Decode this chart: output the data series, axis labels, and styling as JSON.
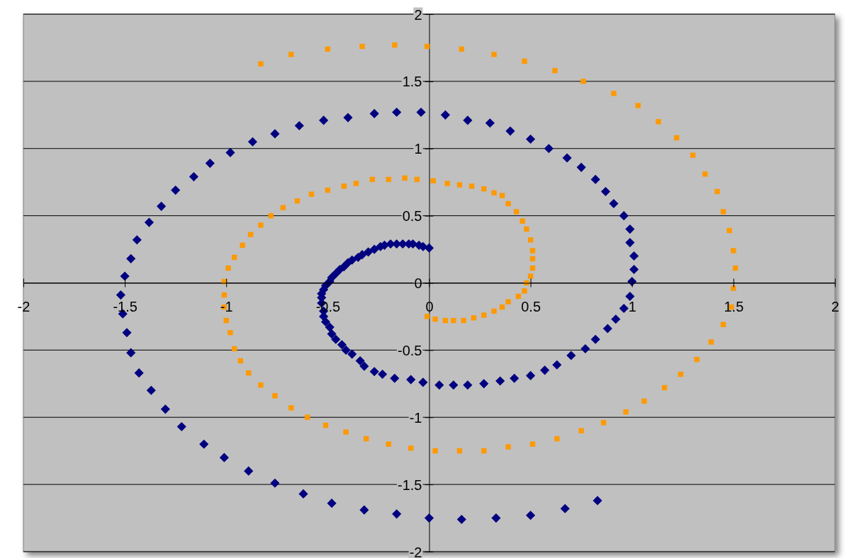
{
  "chart_data": {
    "type": "scatter",
    "xlim": [
      -2,
      2
    ],
    "ylim": [
      -2,
      2
    ],
    "xticks": [
      -2,
      -1.5,
      -1,
      -0.5,
      0,
      0.5,
      1,
      1.5,
      2
    ],
    "yticks": [
      -2,
      -1.5,
      -1,
      -0.5,
      0,
      0.5,
      1,
      1.5,
      2
    ],
    "grid": "y",
    "legend": false,
    "series": [
      {
        "color": "#000080",
        "marker": "diamond",
        "x": [
          0.0,
          -0.03,
          -0.05,
          -0.08,
          -0.1,
          -0.13,
          -0.16,
          -0.19,
          -0.22,
          -0.24,
          -0.27,
          -0.3,
          -0.33,
          -0.35,
          -0.38,
          -0.4,
          -0.42,
          -0.44,
          -0.46,
          -0.48,
          -0.49,
          -0.51,
          -0.52,
          -0.53,
          -0.53,
          -0.53,
          -0.52,
          -0.52,
          -0.51,
          -0.49,
          -0.48,
          -0.46,
          -0.43,
          -0.41,
          -0.38,
          -0.34,
          -0.32,
          -0.27,
          -0.23,
          -0.17,
          -0.09,
          -0.03,
          0.05,
          0.12,
          0.19,
          0.27,
          0.35,
          0.42,
          0.5,
          0.57,
          0.63,
          0.7,
          0.77,
          0.82,
          0.88,
          0.92,
          0.96,
          0.99,
          1.0,
          1.01,
          1.01,
          0.99,
          0.99,
          0.96,
          0.91,
          0.87,
          0.82,
          0.75,
          0.68,
          0.59,
          0.5,
          0.4,
          0.3,
          0.19,
          0.08,
          -0.04,
          -0.16,
          -0.27,
          -0.4,
          -0.52,
          -0.64,
          -0.76,
          -0.87,
          -0.98,
          -1.08,
          -1.16,
          -1.25,
          -1.32,
          -1.38,
          -1.44,
          -1.47,
          -1.5,
          -1.52,
          -1.51,
          -1.49,
          -1.47,
          -1.43,
          -1.37,
          -1.3,
          -1.22,
          -1.11,
          -1.01,
          -0.89,
          -0.76,
          -0.62,
          -0.48,
          -0.32,
          -0.16,
          0.0,
          0.16,
          0.33,
          0.5,
          0.67,
          0.83
        ],
        "values": [
          0.26,
          0.27,
          0.28,
          0.29,
          0.29,
          0.29,
          0.29,
          0.29,
          0.28,
          0.27,
          0.25,
          0.23,
          0.21,
          0.19,
          0.17,
          0.15,
          0.12,
          0.1,
          0.07,
          0.04,
          0.01,
          -0.02,
          -0.05,
          -0.08,
          -0.11,
          -0.15,
          -0.21,
          -0.25,
          -0.29,
          -0.33,
          -0.38,
          -0.42,
          -0.46,
          -0.5,
          -0.53,
          -0.58,
          -0.62,
          -0.66,
          -0.68,
          -0.71,
          -0.72,
          -0.74,
          -0.76,
          -0.76,
          -0.76,
          -0.75,
          -0.73,
          -0.71,
          -0.69,
          -0.65,
          -0.61,
          -0.54,
          -0.49,
          -0.42,
          -0.34,
          -0.27,
          -0.19,
          -0.1,
          0.01,
          0.1,
          0.2,
          0.3,
          0.4,
          0.5,
          0.59,
          0.68,
          0.77,
          0.86,
          0.93,
          1.0,
          1.07,
          1.13,
          1.19,
          1.21,
          1.25,
          1.27,
          1.27,
          1.26,
          1.23,
          1.21,
          1.17,
          1.11,
          1.05,
          0.97,
          0.89,
          0.79,
          0.69,
          0.57,
          0.45,
          0.32,
          0.18,
          0.05,
          -0.09,
          -0.23,
          -0.37,
          -0.52,
          -0.67,
          -0.8,
          -0.94,
          -1.07,
          -1.2,
          -1.3,
          -1.4,
          -1.49,
          -1.57,
          -1.64,
          -1.69,
          -1.72,
          -1.75,
          -1.76,
          -1.75,
          -1.73,
          -1.68,
          -1.62
        ]
      },
      {
        "color": "#ff9900",
        "marker": "square",
        "x": [
          -0.01,
          0.03,
          0.08,
          0.12,
          0.17,
          0.22,
          0.27,
          0.32,
          0.36,
          0.39,
          0.44,
          0.47,
          0.48,
          0.5,
          0.51,
          0.51,
          0.51,
          0.5,
          0.48,
          0.46,
          0.43,
          0.39,
          0.36,
          0.32,
          0.27,
          0.21,
          0.15,
          0.09,
          0.02,
          -0.06,
          -0.12,
          -0.2,
          -0.28,
          -0.36,
          -0.42,
          -0.5,
          -0.58,
          -0.65,
          -0.72,
          -0.78,
          -0.83,
          -0.88,
          -0.92,
          -0.96,
          -0.99,
          -1.01,
          -1.01,
          -1.01,
          -1.0,
          -0.98,
          -0.96,
          -0.93,
          -0.89,
          -0.83,
          -0.76,
          -0.68,
          -0.6,
          -0.51,
          -0.41,
          -0.31,
          -0.2,
          -0.09,
          0.03,
          0.15,
          0.27,
          0.39,
          0.51,
          0.63,
          0.75,
          0.86,
          0.97,
          1.06,
          1.16,
          1.24,
          1.32,
          1.39,
          1.45,
          1.49,
          1.5,
          1.51,
          1.5,
          1.48,
          1.45,
          1.42,
          1.36,
          1.3,
          1.22,
          1.13,
          1.03,
          0.91,
          0.76,
          0.62,
          0.47,
          0.32,
          0.16,
          -0.01,
          -0.17,
          -0.33,
          -0.5,
          -0.68,
          -0.83
        ],
        "values": [
          -0.25,
          -0.27,
          -0.28,
          -0.28,
          -0.28,
          -0.26,
          -0.24,
          -0.21,
          -0.18,
          -0.14,
          -0.1,
          -0.06,
          0.0,
          0.05,
          0.11,
          0.18,
          0.24,
          0.32,
          0.4,
          0.46,
          0.53,
          0.59,
          0.65,
          0.67,
          0.7,
          0.72,
          0.73,
          0.74,
          0.76,
          0.77,
          0.78,
          0.77,
          0.77,
          0.74,
          0.72,
          0.69,
          0.66,
          0.61,
          0.56,
          0.5,
          0.43,
          0.36,
          0.28,
          0.19,
          0.11,
          0.01,
          -0.09,
          -0.18,
          -0.28,
          -0.37,
          -0.49,
          -0.58,
          -0.67,
          -0.76,
          -0.84,
          -0.93,
          -1.0,
          -1.06,
          -1.11,
          -1.16,
          -1.2,
          -1.23,
          -1.25,
          -1.25,
          -1.25,
          -1.22,
          -1.2,
          -1.16,
          -1.1,
          -1.04,
          -0.96,
          -0.88,
          -0.78,
          -0.68,
          -0.57,
          -0.44,
          -0.31,
          -0.18,
          -0.04,
          0.11,
          0.24,
          0.39,
          0.53,
          0.68,
          0.81,
          0.95,
          1.08,
          1.2,
          1.32,
          1.41,
          1.5,
          1.58,
          1.65,
          1.7,
          1.74,
          1.76,
          1.77,
          1.76,
          1.74,
          1.7,
          1.63
        ]
      }
    ]
  }
}
